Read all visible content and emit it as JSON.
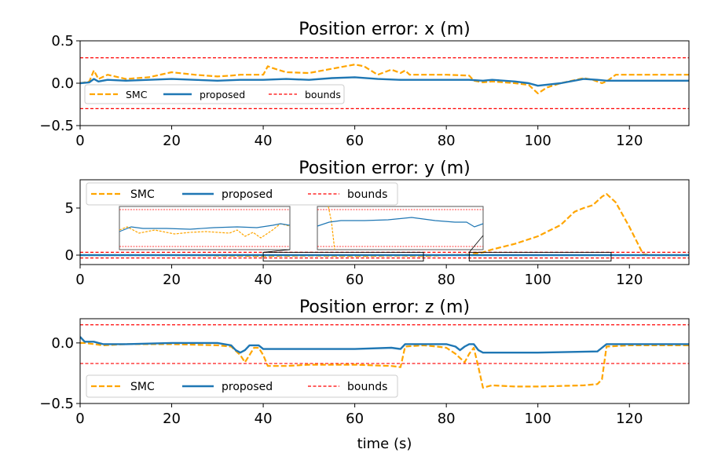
{
  "figure": {
    "xlabel": "time (s)",
    "xlim": [
      0,
      133
    ],
    "xticks": [
      0,
      20,
      40,
      60,
      80,
      100,
      120
    ],
    "colors": {
      "smc": "#ffa500",
      "proposed": "#1f77b4",
      "bounds": "#ff0000"
    }
  },
  "chart_data": [
    {
      "type": "line",
      "title": "Position error: x (m)",
      "ylim": [
        -0.5,
        0.5
      ],
      "yticks": [
        {
          "value": 0.5,
          "label": "0.5"
        },
        {
          "value": 0.0,
          "label": "0.0"
        },
        {
          "value": -0.5,
          "label": "−0.5"
        }
      ],
      "legend": {
        "entries": [
          "SMC",
          "proposed",
          "bounds"
        ],
        "placement": "lower-left"
      },
      "bounds": [
        0.3,
        -0.3
      ],
      "series": [
        {
          "name": "SMC",
          "style": "dashed",
          "x": [
            0,
            2,
            3,
            4,
            6,
            10,
            15,
            20,
            25,
            30,
            33,
            35,
            38,
            40,
            41,
            42,
            45,
            50,
            55,
            60,
            62,
            65,
            68,
            70,
            71,
            72,
            75,
            80,
            85,
            86,
            88,
            90,
            95,
            98,
            100,
            102,
            105,
            110,
            112,
            114,
            115,
            117,
            120,
            125,
            130,
            133
          ],
          "y": [
            0,
            0.02,
            0.15,
            0.05,
            0.1,
            0.05,
            0.07,
            0.13,
            0.1,
            0.08,
            0.09,
            0.1,
            0.1,
            0.1,
            0.2,
            0.18,
            0.13,
            0.12,
            0.17,
            0.22,
            0.2,
            0.1,
            0.16,
            0.12,
            0.15,
            0.1,
            0.1,
            0.1,
            0.09,
            0.03,
            0.01,
            0.02,
            0.0,
            -0.02,
            -0.12,
            -0.05,
            0.0,
            0.06,
            0.04,
            0.0,
            0.02,
            0.1,
            0.1,
            0.1,
            0.1,
            0.1
          ]
        },
        {
          "name": "proposed",
          "style": "solid",
          "x": [
            0,
            2,
            3,
            4,
            6,
            10,
            15,
            20,
            25,
            30,
            35,
            40,
            45,
            50,
            55,
            60,
            65,
            70,
            75,
            80,
            85,
            88,
            90,
            95,
            98,
            100,
            105,
            110,
            113,
            115,
            120,
            125,
            130,
            133
          ],
          "y": [
            0,
            0.01,
            0.05,
            0.02,
            0.04,
            0.03,
            0.04,
            0.05,
            0.04,
            0.03,
            0.04,
            0.04,
            0.05,
            0.04,
            0.06,
            0.07,
            0.05,
            0.04,
            0.04,
            0.04,
            0.04,
            0.03,
            0.04,
            0.02,
            0.0,
            -0.03,
            0.0,
            0.05,
            0.04,
            0.03,
            0.03,
            0.03,
            0.03,
            0.03
          ]
        }
      ]
    },
    {
      "type": "line",
      "title": "Position error: y (m)",
      "ylim": [
        -1.0,
        8.0
      ],
      "yticks": [
        {
          "value": 5,
          "label": "5"
        },
        {
          "value": 0,
          "label": "0"
        }
      ],
      "legend": {
        "entries": [
          "SMC",
          "proposed",
          "bounds"
        ],
        "placement": "upper-left"
      },
      "bounds": [
        0.3,
        -0.3
      ],
      "inset_boxes": [
        {
          "x": [
            40,
            75
          ]
        },
        {
          "x": [
            85,
            116
          ]
        }
      ],
      "series": [
        {
          "name": "SMC",
          "style": "dashed",
          "x": [
            0,
            10,
            20,
            30,
            40,
            50,
            60,
            70,
            75,
            80,
            85,
            88,
            90,
            95,
            100,
            105,
            108,
            110,
            112,
            114,
            115,
            117,
            120,
            123,
            125,
            130,
            133
          ],
          "y": [
            0,
            0,
            0,
            -0.05,
            -0.1,
            -0.05,
            -0.1,
            -0.05,
            -0.1,
            0,
            0.05,
            0.3,
            0.6,
            1.2,
            2.0,
            3.2,
            4.6,
            5.0,
            5.3,
            6.2,
            6.5,
            5.6,
            3.0,
            0.1,
            0,
            0,
            0
          ]
        },
        {
          "name": "proposed",
          "style": "solid",
          "x": [
            0,
            20,
            40,
            60,
            80,
            100,
            120,
            133
          ],
          "y": [
            0,
            0,
            0,
            0,
            0,
            0,
            0,
            0
          ]
        }
      ]
    },
    {
      "type": "line",
      "title": "Position error: z (m)",
      "ylim": [
        -0.5,
        0.2
      ],
      "yticks": [
        {
          "value": 0.0,
          "label": "0.0"
        },
        {
          "value": -0.5,
          "label": "−0.5"
        }
      ],
      "legend": {
        "entries": [
          "SMC",
          "proposed",
          "bounds"
        ],
        "placement": "lower-left"
      },
      "bounds": [
        0.15,
        -0.17
      ],
      "series": [
        {
          "name": "SMC",
          "style": "dashed",
          "x": [
            0,
            1,
            5,
            10,
            20,
            30,
            33,
            35,
            36,
            37,
            38,
            39,
            40,
            41,
            45,
            50,
            60,
            68,
            70,
            71,
            75,
            78,
            80,
            82,
            84,
            85,
            86,
            87,
            88,
            90,
            95,
            100,
            110,
            113,
            114,
            115,
            120,
            125,
            133
          ],
          "y": [
            0.0,
            0.0,
            -0.02,
            -0.01,
            -0.01,
            -0.02,
            -0.03,
            -0.1,
            -0.16,
            -0.1,
            -0.04,
            -0.04,
            -0.1,
            -0.19,
            -0.19,
            -0.18,
            -0.18,
            -0.19,
            -0.2,
            -0.03,
            -0.02,
            -0.03,
            -0.04,
            -0.09,
            -0.16,
            -0.09,
            -0.04,
            -0.2,
            -0.37,
            -0.35,
            -0.36,
            -0.36,
            -0.35,
            -0.34,
            -0.3,
            -0.03,
            -0.02,
            -0.02,
            -0.02
          ]
        },
        {
          "name": "proposed",
          "style": "solid",
          "x": [
            0,
            1,
            3,
            5,
            10,
            20,
            30,
            33,
            34,
            35,
            36,
            37,
            38,
            39,
            40,
            45,
            50,
            60,
            68,
            70,
            71,
            75,
            80,
            82,
            83,
            84,
            85,
            86,
            87,
            88,
            90,
            100,
            113,
            114,
            115,
            120,
            125,
            133
          ],
          "y": [
            0.05,
            0.01,
            0.01,
            -0.01,
            -0.01,
            0.0,
            0.0,
            -0.02,
            -0.06,
            -0.08,
            -0.06,
            -0.02,
            -0.02,
            -0.02,
            -0.05,
            -0.05,
            -0.05,
            -0.05,
            -0.04,
            -0.05,
            -0.01,
            -0.01,
            -0.01,
            -0.03,
            -0.06,
            -0.03,
            -0.01,
            -0.01,
            -0.06,
            -0.08,
            -0.08,
            -0.08,
            -0.07,
            -0.04,
            -0.01,
            -0.01,
            -0.01,
            -0.01
          ]
        }
      ]
    }
  ]
}
